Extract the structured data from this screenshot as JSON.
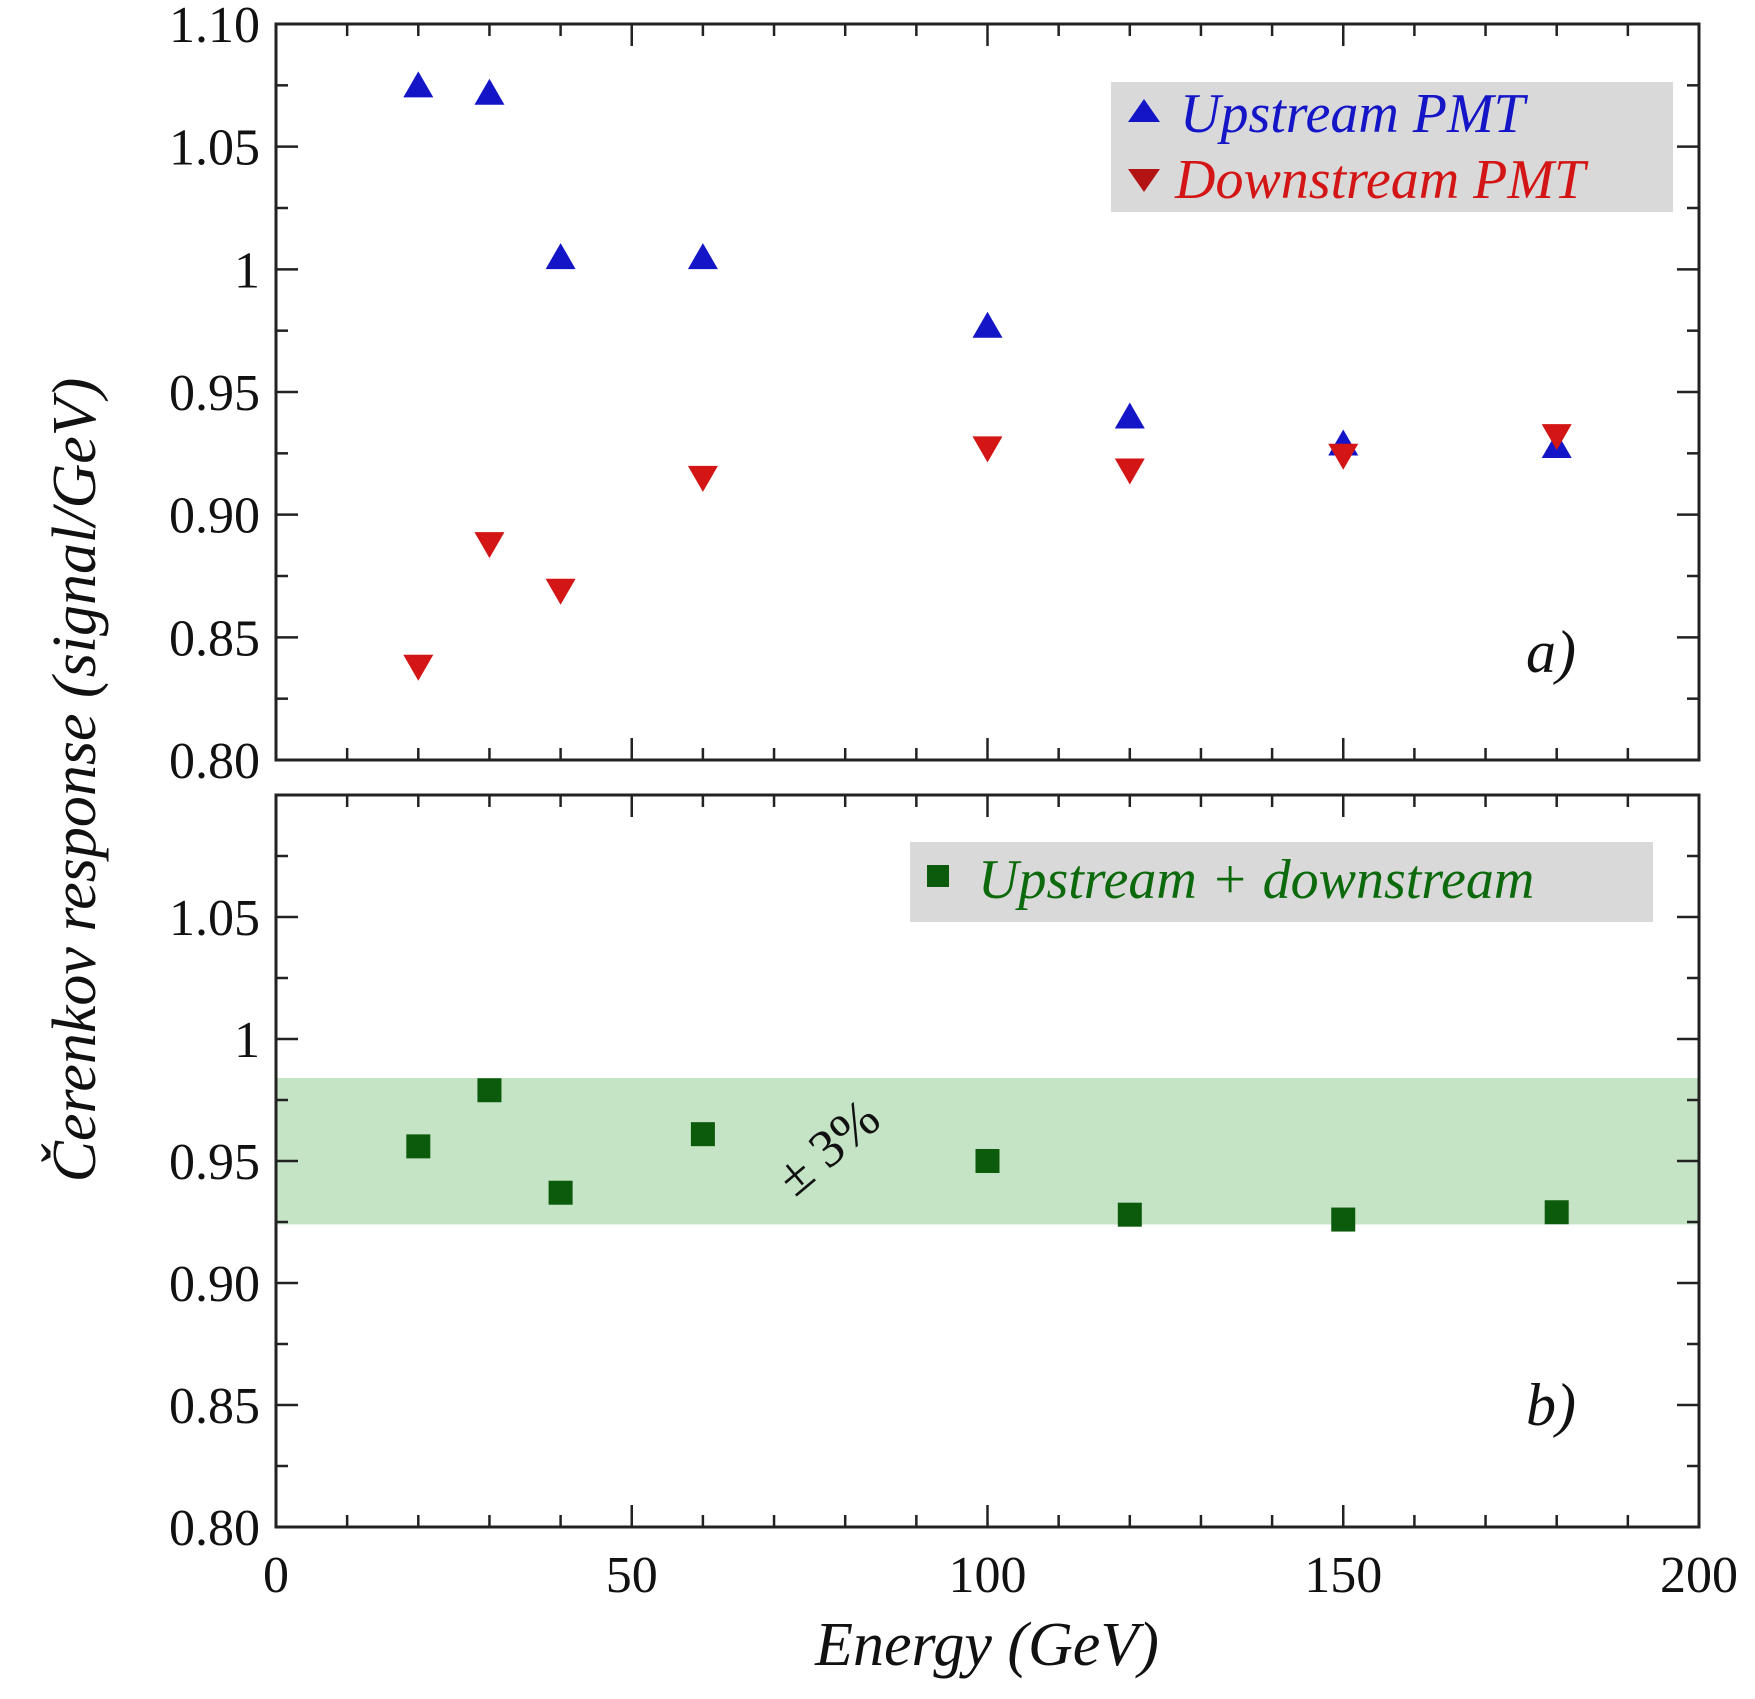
{
  "chart_data": [
    {
      "type": "scatter",
      "panel": "a)",
      "xlabel": "Energy (GeV)",
      "ylabel": "Čerenkov response (signal/GeV)",
      "xlim": [
        0,
        200
      ],
      "ylim": [
        0.8,
        1.1
      ],
      "x_ticks": [
        "0",
        "50",
        "100",
        "150",
        "200"
      ],
      "y_ticks": [
        "0.80",
        "0.85",
        "0.90",
        "0.95",
        "1",
        "1.05",
        "1.10"
      ],
      "legend_position": "top-right",
      "series": [
        {
          "name": "Upstream PMT",
          "marker": "triangle-up",
          "color": "#1515c8",
          "x": [
            20,
            30,
            40,
            60,
            100,
            120,
            150,
            180
          ],
          "y": [
            1.075,
            1.072,
            1.005,
            1.005,
            0.977,
            0.94,
            0.929,
            0.928
          ]
        },
        {
          "name": "Downstream PMT",
          "marker": "triangle-down",
          "color": "#d41515",
          "x": [
            20,
            30,
            40,
            60,
            100,
            120,
            150,
            180
          ],
          "y": [
            0.838,
            0.888,
            0.869,
            0.915,
            0.927,
            0.918,
            0.924,
            0.932
          ]
        }
      ]
    },
    {
      "type": "scatter",
      "panel": "b)",
      "xlabel": "Energy (GeV)",
      "ylabel": "Čerenkov response (signal/GeV)",
      "xlim": [
        0,
        200
      ],
      "ylim": [
        0.8,
        1.1
      ],
      "x_ticks": [
        "0",
        "50",
        "100",
        "150",
        "200"
      ],
      "y_ticks": [
        "0.80",
        "0.85",
        "0.90",
        "0.95",
        "1",
        "1.05"
      ],
      "legend_position": "top-right",
      "band": {
        "label": "± 3%",
        "y_min": 0.924,
        "y_max": 0.984,
        "color": "#c5e3c5"
      },
      "series": [
        {
          "name": "Upstream + downstream",
          "marker": "square",
          "color": "#0c5a0c",
          "x": [
            20,
            30,
            40,
            60,
            100,
            120,
            150,
            180
          ],
          "y": [
            0.956,
            0.979,
            0.937,
            0.961,
            0.95,
            0.928,
            0.926,
            0.929
          ]
        }
      ]
    }
  ]
}
